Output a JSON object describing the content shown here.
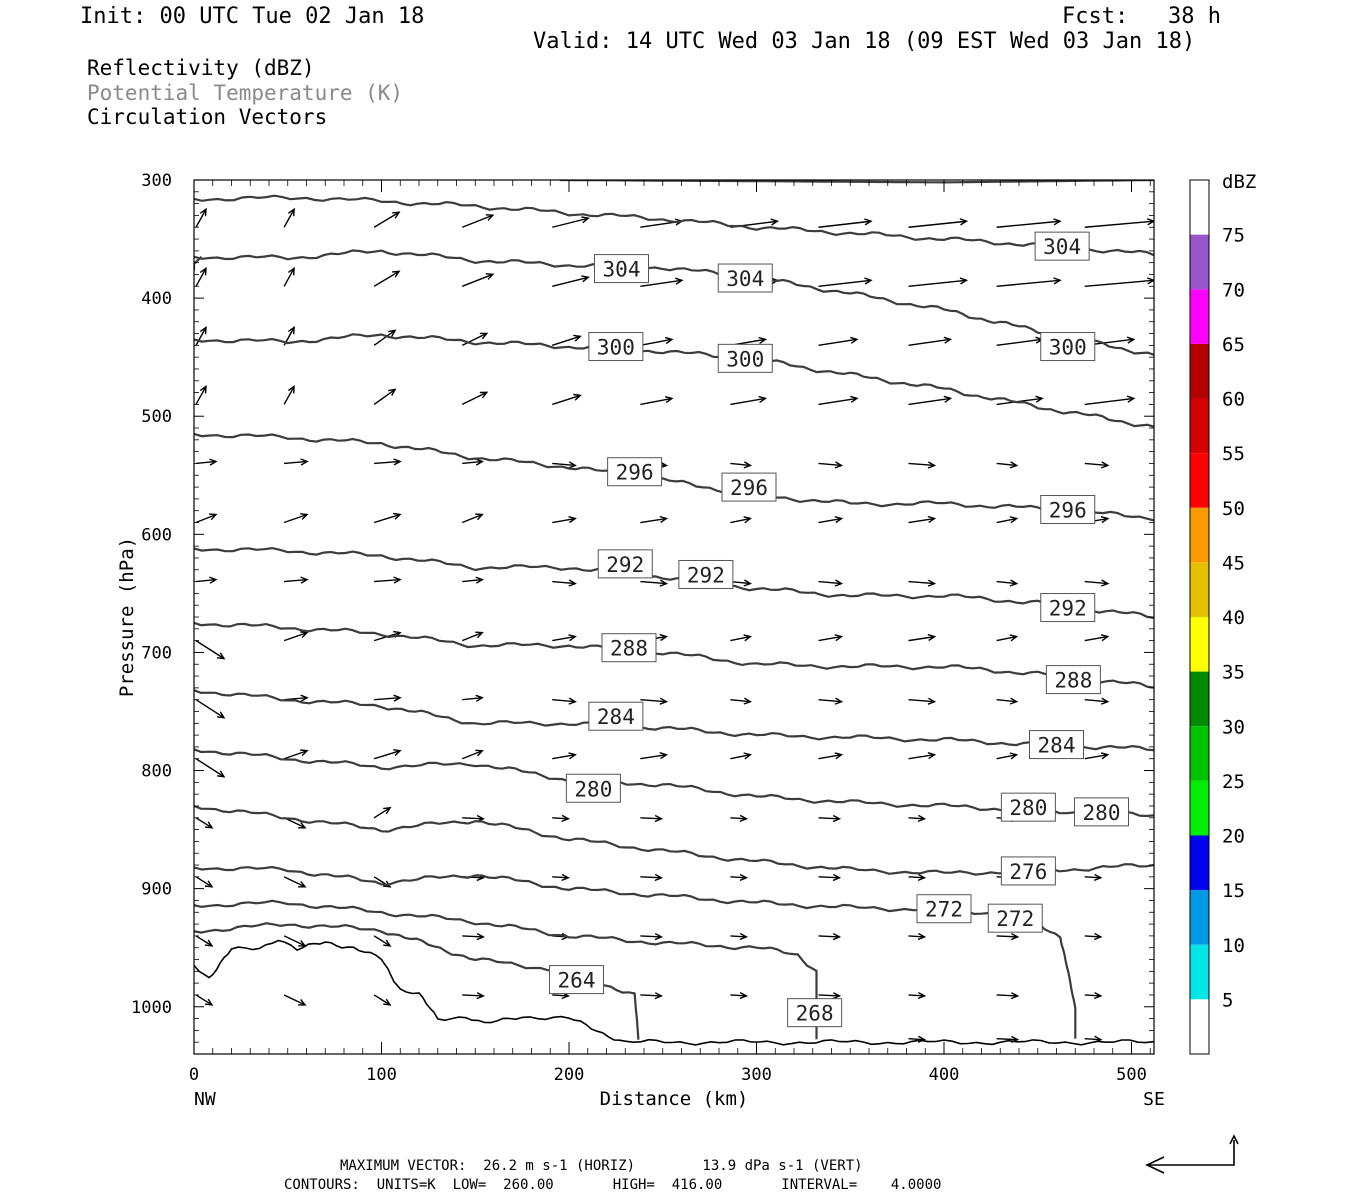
{
  "header": {
    "init": "Init: 00 UTC Tue 02 Jan 18",
    "fcst": "Fcst:   38 h",
    "valid": "Valid: 14 UTC Wed 03 Jan 18 (09 EST Wed 03 Jan 18)"
  },
  "fields": {
    "reflectivity": "Reflectivity (dBZ)",
    "theta": "Potential Temperature (K)",
    "vectors": "Circulation Vectors"
  },
  "footer": {
    "max_vector": "MAXIMUM VECTOR:  26.2 m s-1 (HORIZ)        13.9 dPa s-1 (VERT)",
    "contours": "CONTOURS:  UNITS=K  LOW=  260.00       HIGH=  416.00       INTERVAL=    4.0000"
  },
  "chart_data": {
    "type": "contour",
    "xlabel": "Distance (km)",
    "ylabel": "Pressure (hPa)",
    "xlim": [
      0,
      512
    ],
    "ylim": [
      300,
      1040
    ],
    "y_inverted": true,
    "x_ticks": [
      0,
      100,
      200,
      300,
      400,
      500
    ],
    "y_ticks": [
      300,
      400,
      500,
      600,
      700,
      800,
      900,
      1000
    ],
    "x_end_labels": {
      "left": "NW",
      "right": "SE"
    },
    "colorbar": {
      "label": "dBZ",
      "ticks": [
        5,
        10,
        15,
        20,
        25,
        30,
        35,
        40,
        45,
        50,
        55,
        60,
        65,
        70,
        75
      ],
      "colors": [
        "#ffffff",
        "#00e6e6",
        "#0099e6",
        "#0000ee",
        "#00ee00",
        "#00c400",
        "#008a00",
        "#ffff00",
        "#e6c000",
        "#ff9900",
        "#ff0000",
        "#d60000",
        "#b40000",
        "#ff00ff",
        "#9955cc",
        "#ffffff"
      ]
    },
    "theta_contours": [
      {
        "value": 304,
        "labels": [
          {
            "x": 228,
            "p": 375
          },
          {
            "x": 294,
            "p": 383
          },
          {
            "x": 463,
            "p": 356
          }
        ],
        "points": [
          [
            0,
            365
          ],
          [
            50,
            366
          ],
          [
            100,
            360
          ],
          [
            150,
            368
          ],
          [
            200,
            372
          ],
          [
            250,
            374
          ],
          [
            300,
            383
          ],
          [
            350,
            396
          ],
          [
            400,
            410
          ],
          [
            450,
            428
          ],
          [
            512,
            448
          ]
        ]
      },
      {
        "value": 300,
        "labels": [
          {
            "x": 225,
            "p": 441
          },
          {
            "x": 294,
            "p": 451
          },
          {
            "x": 466,
            "p": 441
          }
        ],
        "points": [
          [
            0,
            435
          ],
          [
            50,
            437
          ],
          [
            100,
            431
          ],
          [
            150,
            437
          ],
          [
            200,
            441
          ],
          [
            250,
            445
          ],
          [
            300,
            452
          ],
          [
            350,
            465
          ],
          [
            400,
            477
          ],
          [
            450,
            492
          ],
          [
            512,
            509
          ]
        ]
      },
      {
        "value": 296,
        "labels": [
          {
            "x": 235,
            "p": 547
          },
          {
            "x": 296,
            "p": 560
          },
          {
            "x": 466,
            "p": 579
          }
        ],
        "points": [
          [
            0,
            515
          ],
          [
            50,
            518
          ],
          [
            100,
            523
          ],
          [
            150,
            535
          ],
          [
            200,
            543
          ],
          [
            250,
            554
          ],
          [
            300,
            567
          ],
          [
            350,
            574
          ],
          [
            400,
            574
          ],
          [
            450,
            578
          ],
          [
            512,
            586
          ]
        ]
      },
      {
        "value": 292,
        "labels": [
          {
            "x": 230,
            "p": 625
          },
          {
            "x": 273,
            "p": 634
          },
          {
            "x": 466,
            "p": 662
          }
        ],
        "points": [
          [
            0,
            612
          ],
          [
            50,
            614
          ],
          [
            100,
            618
          ],
          [
            150,
            628
          ],
          [
            200,
            628
          ],
          [
            250,
            636
          ],
          [
            300,
            646
          ],
          [
            350,
            652
          ],
          [
            400,
            652
          ],
          [
            450,
            658
          ],
          [
            512,
            670
          ]
        ]
      },
      {
        "value": 288,
        "labels": [
          {
            "x": 232,
            "p": 696
          },
          {
            "x": 469,
            "p": 723
          }
        ],
        "points": [
          [
            0,
            675
          ],
          [
            50,
            679
          ],
          [
            100,
            684
          ],
          [
            150,
            694
          ],
          [
            200,
            694
          ],
          [
            250,
            700
          ],
          [
            300,
            710
          ],
          [
            350,
            712
          ],
          [
            400,
            712
          ],
          [
            450,
            718
          ],
          [
            512,
            729
          ]
        ]
      },
      {
        "value": 284,
        "labels": [
          {
            "x": 225,
            "p": 754
          },
          {
            "x": 460,
            "p": 778
          }
        ],
        "points": [
          [
            0,
            732
          ],
          [
            50,
            740
          ],
          [
            100,
            745
          ],
          [
            150,
            760
          ],
          [
            200,
            760
          ],
          [
            250,
            764
          ],
          [
            300,
            770
          ],
          [
            350,
            772
          ],
          [
            400,
            774
          ],
          [
            450,
            778
          ],
          [
            512,
            782
          ]
        ]
      },
      {
        "value": 280,
        "labels": [
          {
            "x": 213,
            "p": 815
          },
          {
            "x": 445,
            "p": 831
          },
          {
            "x": 484,
            "p": 835
          }
        ],
        "points": [
          [
            0,
            782
          ],
          [
            50,
            790
          ],
          [
            100,
            797
          ],
          [
            150,
            794
          ],
          [
            200,
            808
          ],
          [
            250,
            812
          ],
          [
            300,
            822
          ],
          [
            350,
            827
          ],
          [
            400,
            830
          ],
          [
            450,
            834
          ],
          [
            512,
            838
          ]
        ]
      },
      {
        "value": 276,
        "labels": [
          {
            "x": 445,
            "p": 885
          }
        ],
        "points": [
          [
            0,
            830
          ],
          [
            50,
            840
          ],
          [
            100,
            850
          ],
          [
            150,
            842
          ],
          [
            200,
            858
          ],
          [
            250,
            868
          ],
          [
            300,
            877
          ],
          [
            350,
            884
          ],
          [
            400,
            887
          ],
          [
            450,
            885
          ],
          [
            512,
            880
          ]
        ]
      },
      {
        "value": 272,
        "labels": [
          {
            "x": 400,
            "p": 917
          },
          {
            "x": 438,
            "p": 925
          }
        ],
        "points": [
          [
            0,
            882
          ],
          [
            50,
            884
          ],
          [
            100,
            895
          ],
          [
            150,
            888
          ],
          [
            200,
            900
          ],
          [
            250,
            906
          ],
          [
            300,
            912
          ],
          [
            350,
            916
          ],
          [
            400,
            918
          ],
          [
            440,
            922
          ],
          [
            462,
            940
          ],
          [
            470,
            1000
          ],
          [
            470,
            1027
          ]
        ]
      },
      {
        "value": 268,
        "labels": [
          {
            "x": 331,
            "p": 1005
          }
        ],
        "points": [
          [
            0,
            914
          ],
          [
            50,
            912
          ],
          [
            100,
            920
          ],
          [
            150,
            928
          ],
          [
            200,
            940
          ],
          [
            250,
            946
          ],
          [
            300,
            950
          ],
          [
            322,
            956
          ],
          [
            332,
            970
          ],
          [
            332,
            1027
          ]
        ]
      },
      {
        "value": 264,
        "labels": [
          {
            "x": 204,
            "p": 977
          }
        ],
        "points": [
          [
            0,
            936
          ],
          [
            50,
            930
          ],
          [
            100,
            935
          ],
          [
            150,
            960
          ],
          [
            200,
            970
          ],
          [
            235,
            990
          ],
          [
            237,
            1027
          ]
        ]
      }
    ],
    "terrain_contour": {
      "points": [
        [
          0,
          965
        ],
        [
          8,
          975
        ],
        [
          20,
          952
        ],
        [
          35,
          950
        ],
        [
          45,
          942
        ],
        [
          55,
          952
        ],
        [
          70,
          945
        ],
        [
          85,
          950
        ],
        [
          100,
          960
        ],
        [
          110,
          985
        ],
        [
          120,
          990
        ],
        [
          130,
          1010
        ],
        [
          145,
          1008
        ],
        [
          155,
          1015
        ],
        [
          175,
          1008
        ],
        [
          200,
          1010
        ],
        [
          215,
          1020
        ],
        [
          230,
          1030
        ],
        [
          280,
          1030
        ],
        [
          400,
          1030
        ],
        [
          512,
          1030
        ]
      ]
    },
    "max_vector": {
      "horiz": "26.2 m s-1",
      "vert": "13.9 dPa s-1"
    },
    "contour_settings": {
      "units": "K",
      "low": 260.0,
      "high": 416.0,
      "interval": 4.0
    }
  }
}
